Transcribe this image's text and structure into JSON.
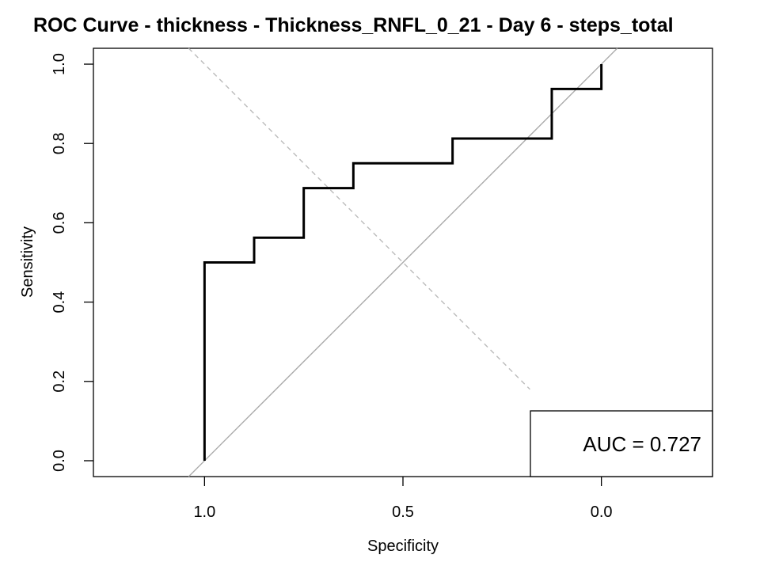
{
  "chart_data": {
    "type": "line",
    "title": "ROC Curve - thickness - Thickness_RNFL_0_21 - Day 6 - steps_total",
    "xlabel": "Specificity",
    "ylabel": "Sensitivity",
    "x_reversed": true,
    "xlim": [
      1.28,
      -0.28
    ],
    "ylim": [
      -0.04,
      1.04
    ],
    "x_ticks": [
      1.0,
      0.5,
      0.0
    ],
    "x_tick_labels": [
      "1.0",
      "0.5",
      "0.0"
    ],
    "y_ticks": [
      0.0,
      0.2,
      0.4,
      0.6,
      0.8,
      1.0
    ],
    "y_tick_labels": [
      "0.0",
      "0.2",
      "0.4",
      "0.6",
      "0.8",
      "1.0"
    ],
    "grid": false,
    "series": [
      {
        "style": "solid",
        "color": "#000000",
        "x": [
          1.0,
          1.0,
          0.875,
          0.875,
          0.75,
          0.75,
          0.625,
          0.625,
          0.375,
          0.375,
          0.125,
          0.125,
          0.0,
          0.0
        ],
        "y": [
          0.0,
          0.5,
          0.5,
          0.5625,
          0.5625,
          0.6875,
          0.6875,
          0.75,
          0.75,
          0.8125,
          0.8125,
          0.9375,
          0.9375,
          1.0
        ]
      }
    ],
    "reference_lines": [
      {
        "style": "solid",
        "color": "#aaaaaa",
        "x": [
          1.04,
          -0.04
        ],
        "y": [
          -0.04,
          1.04
        ]
      },
      {
        "style": "dashed",
        "color": "#bbbbbb",
        "x": [
          1.04,
          0.18
        ],
        "y": [
          1.04,
          0.18
        ]
      }
    ],
    "annotation": {
      "text": "AUC = 0.727",
      "placement": "bottom-right",
      "boxed": true
    }
  }
}
